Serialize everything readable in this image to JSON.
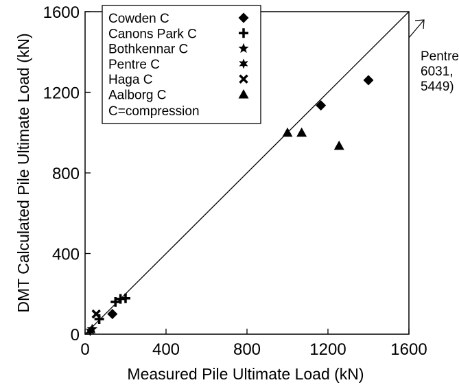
{
  "chart_data": {
    "type": "scatter",
    "title": "",
    "xlabel": "Measured Pile Ultimate Load (kN)",
    "ylabel": "DMT Calculated Pile Ultimate Load (kN)",
    "xlim": [
      0,
      1600
    ],
    "ylim": [
      0,
      1600
    ],
    "x_ticks": [
      "0",
      "400",
      "800",
      "1200",
      "1600"
    ],
    "y_ticks": [
      "0",
      "400",
      "800",
      "1200",
      "1600"
    ],
    "reference_line": "1:1",
    "grid": false,
    "legend_placement": "top-left",
    "legend_note": "C=compression",
    "series": [
      {
        "name": "Cowden C",
        "marker": "diamond",
        "points": [
          [
            135,
            100
          ],
          [
            1165,
            1135
          ],
          [
            1400,
            1260
          ]
        ]
      },
      {
        "name": "Canons Park C",
        "marker": "plus",
        "points": [
          [
            70,
            75
          ],
          [
            150,
            160
          ],
          [
            175,
            175
          ],
          [
            200,
            178
          ]
        ]
      },
      {
        "name": "Bothkennar C",
        "marker": "star5",
        "points": [
          [
            35,
            25
          ]
        ]
      },
      {
        "name": "Pentre C",
        "marker": "star6",
        "points": [
          [
            25,
            15
          ]
        ]
      },
      {
        "name": "Haga C",
        "marker": "cross",
        "points": [
          [
            55,
            100
          ]
        ]
      },
      {
        "name": "Aalborg C",
        "marker": "triangle",
        "points": [
          [
            1000,
            1000
          ],
          [
            1070,
            1000
          ],
          [
            1255,
            935
          ]
        ]
      }
    ],
    "annotation": {
      "lines": [
        "Pentre",
        "6031,",
        "5449)"
      ]
    }
  }
}
